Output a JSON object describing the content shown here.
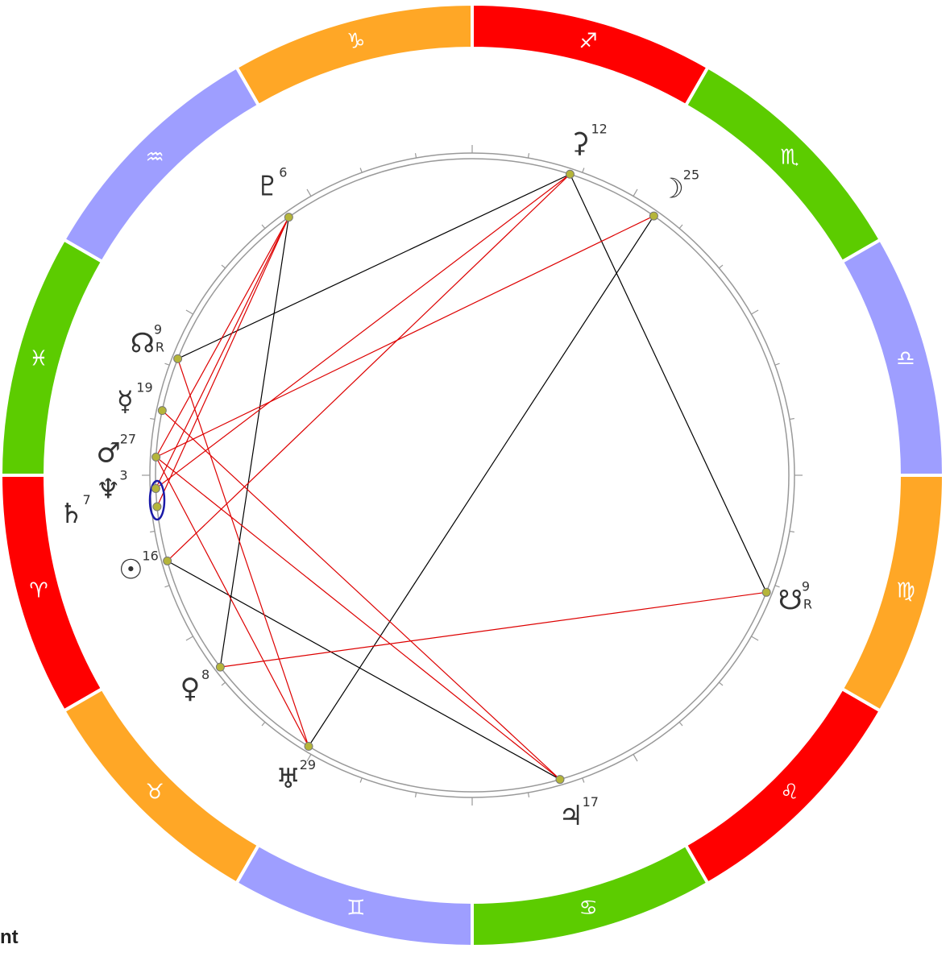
{
  "signs": [
    {
      "glyph": "♈",
      "color": "#ff0000"
    },
    {
      "glyph": "♉",
      "color": "#ffa726"
    },
    {
      "glyph": "♊",
      "color": "#9e9eff"
    },
    {
      "glyph": "♋",
      "color": "#5ccc00"
    },
    {
      "glyph": "♌",
      "color": "#ff0000"
    },
    {
      "glyph": "♍",
      "color": "#ffa726"
    },
    {
      "glyph": "♎",
      "color": "#9e9eff"
    },
    {
      "glyph": "♏",
      "color": "#5ccc00"
    },
    {
      "glyph": "♐",
      "color": "#ff0000"
    },
    {
      "glyph": "♑",
      "color": "#ffa726"
    },
    {
      "glyph": "♒",
      "color": "#9e9eff"
    },
    {
      "glyph": "♓",
      "color": "#5ccc00"
    }
  ],
  "planets": [
    {
      "glyph": "⚳",
      "degree": 12
    },
    {
      "glyph": "☽",
      "degree": 25
    },
    {
      "glyph": "♇",
      "degree": 6
    },
    {
      "glyph": "☊",
      "degree": 9,
      "retrograde": "R"
    },
    {
      "glyph": "☿",
      "degree": 19
    },
    {
      "glyph": "♂",
      "degree": 27
    },
    {
      "glyph": "♆",
      "degree": 3
    },
    {
      "glyph": "♄",
      "degree": 7
    },
    {
      "glyph": "☉",
      "degree": 16
    },
    {
      "glyph": "♀",
      "degree": 8
    },
    {
      "glyph": "♅",
      "degree": 29
    },
    {
      "glyph": "♃",
      "degree": 17
    },
    {
      "glyph": "☋",
      "degree": 9,
      "retrograde": "R"
    }
  ],
  "footer_fragment": "nt"
}
